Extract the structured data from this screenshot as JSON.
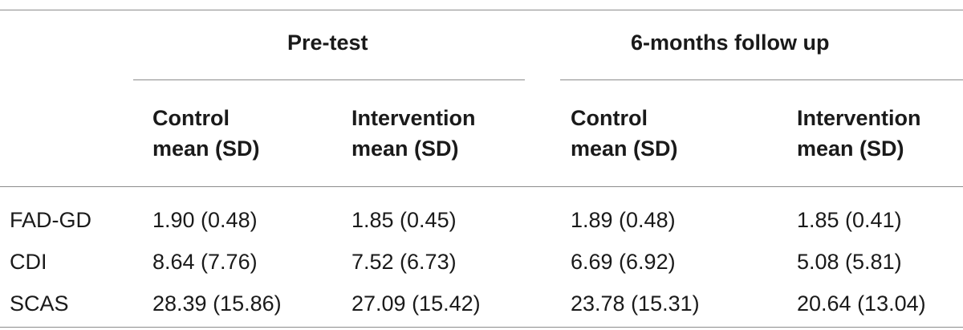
{
  "table": {
    "groups": [
      {
        "label": "Pre-test"
      },
      {
        "label": "6-months follow up"
      }
    ],
    "subheaders": [
      {
        "line1": "Control",
        "line2": "mean (SD)"
      },
      {
        "line1": "Intervention",
        "line2": "mean (SD)"
      },
      {
        "line1": "Control",
        "line2": "mean (SD)"
      },
      {
        "line1": "Intervention",
        "line2": "mean (SD)"
      }
    ],
    "rows": [
      {
        "label": "FAD-GD",
        "cells": [
          "1.90 (0.48)",
          "1.85 (0.45)",
          "1.89 (0.48)",
          "1.85 (0.41)"
        ]
      },
      {
        "label": "CDI",
        "cells": [
          "8.64 (7.76)",
          "7.52 (6.73)",
          "6.69 (6.92)",
          "5.08 (5.81)"
        ]
      },
      {
        "label": "SCAS",
        "cells": [
          "28.39 (15.86)",
          "27.09 (15.42)",
          "23.78 (15.31)",
          "20.64 (13.04)"
        ]
      }
    ]
  }
}
